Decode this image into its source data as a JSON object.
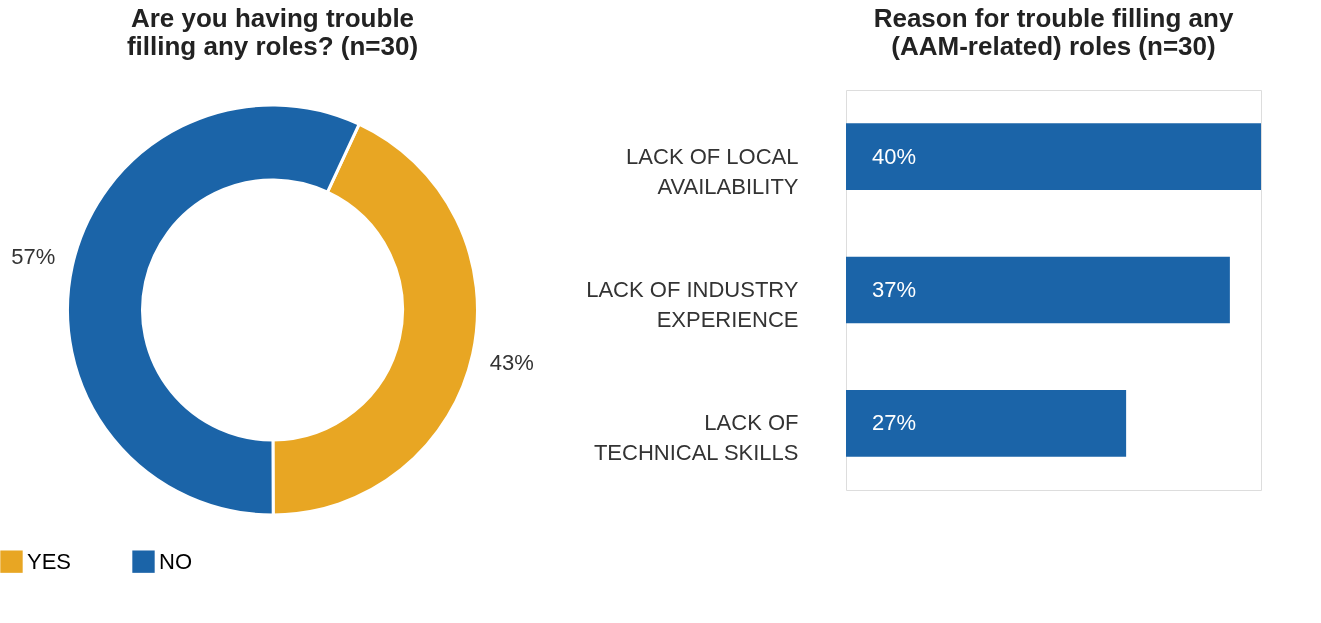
{
  "chart_data": [
    {
      "type": "donut",
      "title": "Are you having trouble\nfilling any roles? (n=30)",
      "categories": [
        "YES",
        "NO"
      ],
      "values": [
        43,
        57
      ],
      "colors": [
        "#e8a623",
        "#1b64a8"
      ],
      "value_labels": [
        "43%",
        "57%"
      ],
      "legend": "bottom"
    },
    {
      "type": "bar",
      "orientation": "horizontal",
      "title": "Reason for trouble filling any\n(AAM-related) roles (n=30)",
      "categories": [
        "LACK OF LOCAL\nAVAILABILITY",
        "LACK OF INDUSTRY\nEXPERIENCE",
        "LACK OF\nTECHNICAL SKILLS"
      ],
      "values": [
        40,
        37,
        27
      ],
      "color": "#1b64a8",
      "value_labels": [
        "40%",
        "37%",
        "27%"
      ]
    }
  ]
}
